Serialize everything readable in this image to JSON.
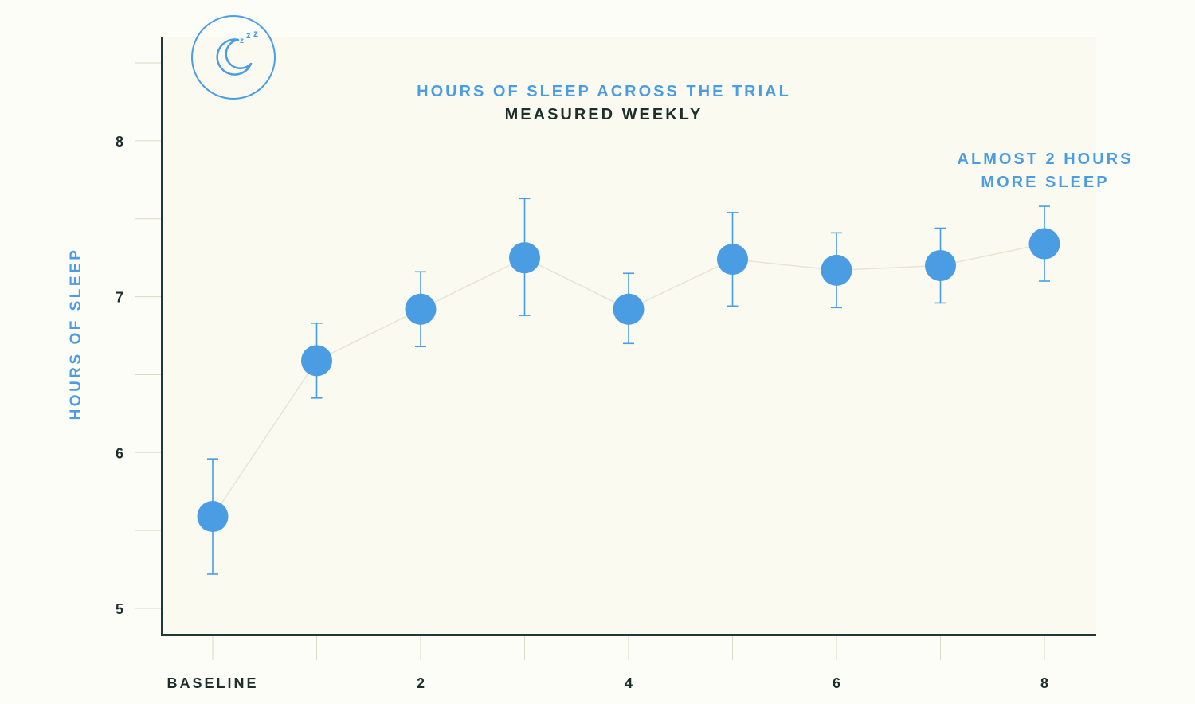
{
  "chart_data": {
    "type": "line",
    "title": "HOURS OF SLEEP ACROSS THE TRIAL",
    "subtitle": "MEASURED WEEKLY",
    "ylabel": "HOURS OF SLEEP",
    "xlabel": "",
    "ylim": [
      4.83,
      8.65
    ],
    "xlim": [
      -0.5,
      8.5
    ],
    "y_ticks": [
      5,
      6,
      7,
      8
    ],
    "x": [
      0,
      1,
      2,
      3,
      4,
      5,
      6,
      7,
      8
    ],
    "x_tick_labels": [
      {
        "x": 0,
        "label": "BASELINE"
      },
      {
        "x": 2,
        "label": "2"
      },
      {
        "x": 4,
        "label": "4"
      },
      {
        "x": 6,
        "label": "6"
      },
      {
        "x": 8,
        "label": "8"
      }
    ],
    "series": [
      {
        "values": [
          5.59,
          6.59,
          6.92,
          7.25,
          6.92,
          7.24,
          7.17,
          7.2,
          7.34
        ],
        "error_low": [
          5.22,
          6.35,
          6.68,
          6.88,
          6.7,
          6.94,
          6.93,
          6.96,
          7.1
        ],
        "error_high": [
          5.96,
          6.83,
          7.16,
          7.63,
          7.15,
          7.54,
          7.41,
          7.44,
          7.58
        ]
      }
    ],
    "annotations": [
      "ALMOST 2 HOURS",
      "MORE SLEEP"
    ],
    "grid": false,
    "colors": {
      "marker": "#4a9ce3",
      "line": "#e6e5d2",
      "axis": "#1f3a36",
      "plot_background": "#fafaf0",
      "page_background": "#fdfdf8"
    }
  },
  "icon": "moon-sleep-icon"
}
